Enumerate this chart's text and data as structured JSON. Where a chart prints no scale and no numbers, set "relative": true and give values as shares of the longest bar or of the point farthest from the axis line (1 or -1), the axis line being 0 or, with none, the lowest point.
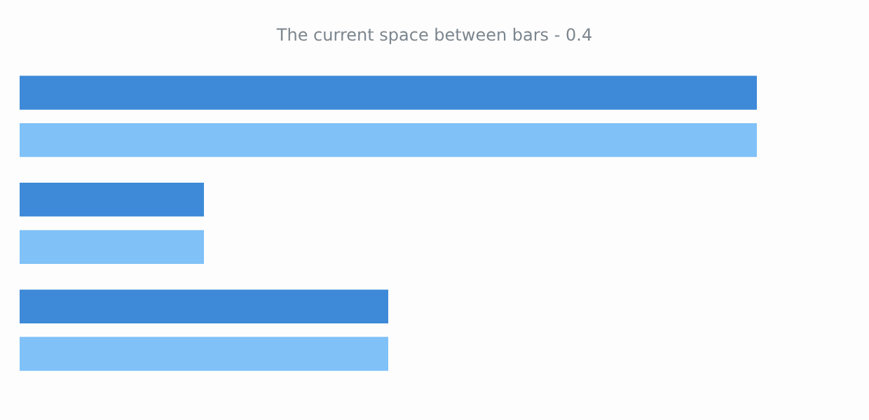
{
  "chart_data": {
    "type": "bar",
    "title": "The current space between bars - 0.4",
    "orientation": "horizontal",
    "relative": true,
    "categories": [
      null,
      null,
      null
    ],
    "series": [
      {
        "color": "#3e8ad8",
        "values": [
          1,
          0.25,
          0.5
        ]
      },
      {
        "color": "#80c1f8",
        "values": [
          1,
          0.25,
          0.5
        ]
      }
    ]
  }
}
